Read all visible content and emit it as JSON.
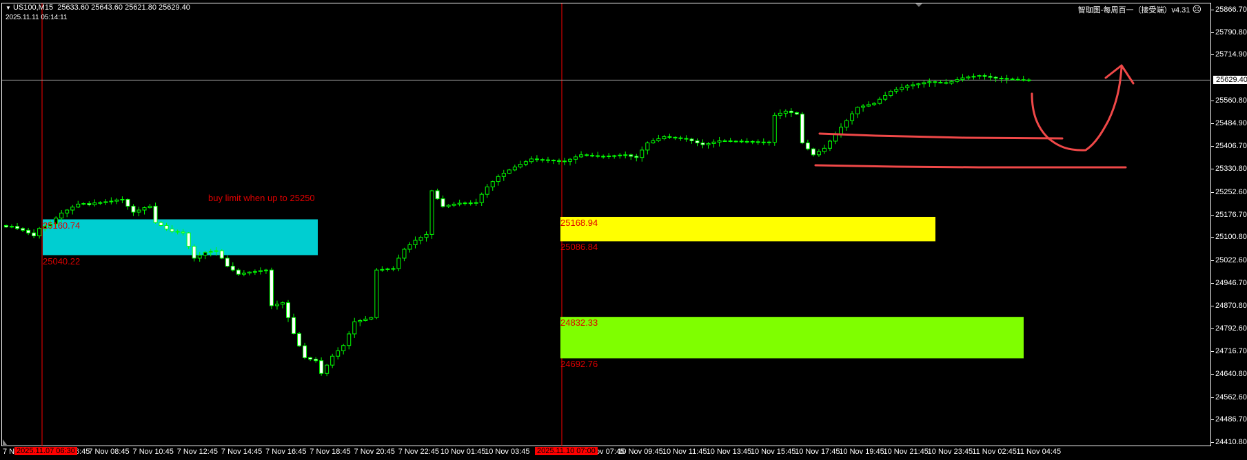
{
  "header": {
    "symbol": "US100,M15",
    "ohlc": "25633.60 25643.60 25621.80 25629.40",
    "datetime": "2025.11.11 05:14:11",
    "indicator_title": "智珈图-每周百一（接受端）v4.31",
    "indicator_icon": "sad-face-icon"
  },
  "colors": {
    "background": "#000000",
    "candle_outline": "#00ff00",
    "bear_body": "#ffffff",
    "bull_body": "#000000",
    "cyan_zone": "#00ced1",
    "yellow_zone": "#ffff00",
    "green_zone": "#7fff00",
    "zone_label": "#e00000",
    "drawing": "#f04848",
    "vline": "#ff0000"
  },
  "annotation": "buy limit when up to 25250",
  "zones": [
    {
      "color": "cyan",
      "top": 25160.74,
      "bottom": 25040.22,
      "top_label": "25160.74",
      "bottom_label": "25040.22"
    },
    {
      "color": "yellow",
      "top": 25168.94,
      "bottom": 25086.84,
      "top_label": "25168.94",
      "bottom_label": "25086.84"
    },
    {
      "color": "green",
      "top": 24832.33,
      "bottom": 24692.76,
      "top_label": "24832.33",
      "bottom_label": "24692.76"
    }
  ],
  "price_axis": {
    "ticks": [
      "25866.70",
      "25790.80",
      "25714.90",
      "25560.80",
      "25484.90",
      "25406.70",
      "25330.80",
      "25252.60",
      "25176.70",
      "25100.80",
      "25022.60",
      "24946.70",
      "24870.80",
      "24792.60",
      "24716.70",
      "24640.80",
      "24562.60",
      "24486.70",
      "24410.80"
    ],
    "current_price": "25629.40"
  },
  "time_axis": {
    "first_partial": "7 N",
    "highlight_1": "2025.11.07 06:30",
    "partial_after_1": "6:45",
    "group1": [
      "7 Nov 08:45",
      "7 Nov 10:45",
      "7 Nov 12:45",
      "7 Nov 14:45",
      "7 Nov 16:45",
      "7 Nov 18:45",
      "7 Nov 20:45",
      "7 Nov 22:45",
      "10 Nov 01:45",
      "10 Nov 03:45"
    ],
    "highlight_2": "2025.11.10 07:00",
    "partial_after_2": "Nov 07:45",
    "group2": [
      "10 Nov 09:45",
      "10 Nov 11:45",
      "10 Nov 13:45",
      "10 Nov 15:45",
      "10 Nov 17:45",
      "10 Nov 19:45",
      "10 Nov 21:45",
      "10 Nov 23:45",
      "11 Nov 02:45",
      "11 Nov 04:45"
    ]
  },
  "chart_data": {
    "type": "candlestick",
    "timeframe": "M15",
    "ylim": [
      24410.8,
      25866.7
    ],
    "closes": [
      25135,
      25137,
      25130,
      25124,
      25115,
      25105,
      25130,
      25138,
      25145,
      25165,
      25182,
      25192,
      25202,
      25212,
      25214,
      25210,
      25216,
      25217,
      25220,
      25222,
      25226,
      25228,
      25205,
      25185,
      25192,
      25200,
      25205,
      25150,
      25140,
      25128,
      25120,
      25118,
      25115,
      25070,
      25030,
      25040,
      25050,
      25053,
      25055,
      25030,
      25003,
      24990,
      24976,
      24980,
      24983,
      24985,
      24988,
      24990,
      24870,
      24875,
      24880,
      24830,
      24776,
      24735,
      24695,
      24690,
      24685,
      24642,
      24670,
      24700,
      24718,
      24736,
      24775,
      24816,
      24820,
      24825,
      24830,
      24990,
      24992,
      24994,
      24995,
      25030,
      25060,
      25075,
      25090,
      25100,
      25110,
      25257,
      25230,
      25204,
      25208,
      25212,
      25215,
      25216,
      25216,
      25217,
      25245,
      25270,
      25288,
      25305,
      25316,
      25327,
      25337,
      25346,
      25355,
      25364,
      25362,
      25361,
      25360,
      25358,
      25357,
      25356,
      25363,
      25371,
      25378,
      25376,
      25375,
      25373,
      25372,
      25374,
      25375,
      25377,
      25378,
      25373,
      25369,
      25394,
      25418,
      25425,
      25432,
      25439,
      25437,
      25435,
      25433,
      25431,
      25425,
      25418,
      25412,
      25416,
      25421,
      25425,
      25425,
      25424,
      25424,
      25423,
      25423,
      25422,
      25421,
      25421,
      25420,
      25511,
      25518,
      25525,
      25520,
      25515,
      25418,
      25398,
      25378,
      25389,
      25400,
      25424,
      25447,
      25471,
      25493,
      25516,
      25538,
      25542,
      25547,
      25551,
      25565,
      25578,
      25592,
      25598,
      25604,
      25610,
      25614,
      25617,
      25621,
      25624,
      25622,
      25621,
      25619,
      25625,
      25631,
      25637,
      25640,
      25642,
      25645,
      25642,
      25639,
      25636,
      25635,
      25633,
      25632,
      25631,
      25630,
      25629.4
    ]
  }
}
